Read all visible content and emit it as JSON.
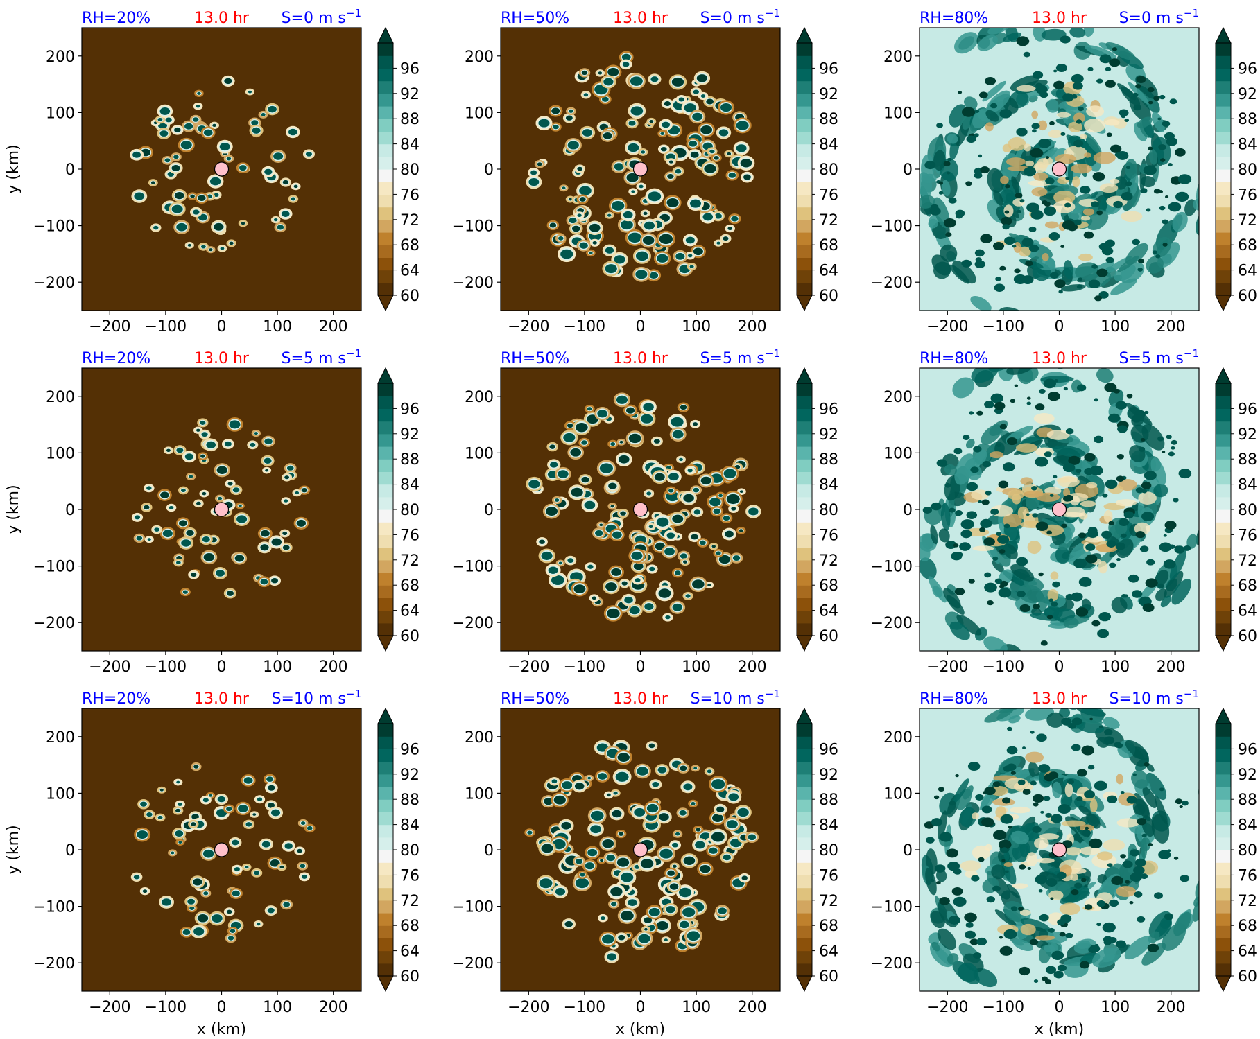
{
  "figure": {
    "time_label": "13.0 hr",
    "x_label": "x (km)",
    "y_label": "y (km)",
    "title_left_color": "#0000ff",
    "title_center_color": "#ff0000",
    "title_right_color": "#0000ff"
  },
  "colorbar": {
    "tick_labels": [
      "96",
      "92",
      "88",
      "84",
      "80",
      "76",
      "72",
      "68",
      "64",
      "60"
    ],
    "colors_low_to_high": [
      "#543005",
      "#6f4208",
      "#8c510a",
      "#a86b1f",
      "#bf812d",
      "#d2a660",
      "#dfc27d",
      "#efdeb0",
      "#f6e8c3",
      "#f5f5f5",
      "#d6efeb",
      "#c7eae5",
      "#9fdbd1",
      "#80cdc1",
      "#5ab4ac",
      "#35978f",
      "#1e7f76",
      "#01665e",
      "#00574e",
      "#003c30"
    ]
  },
  "chart_data": {
    "type": "heatmap",
    "variable_colorbar": {
      "min": 60,
      "max": 100,
      "step": 2,
      "ticks": [
        60,
        64,
        68,
        72,
        76,
        80,
        84,
        88,
        92,
        96
      ],
      "extend": "both"
    },
    "xlim": [
      -250,
      250
    ],
    "ylim": [
      -250,
      250
    ],
    "x_ticks": [
      "−200",
      "−100",
      "0",
      "100",
      "200"
    ],
    "y_ticks": [
      "200",
      "100",
      "0",
      "−100",
      "−200"
    ],
    "xlabel": "x (km)",
    "ylabel": "y (km)",
    "center_marker": {
      "x": 0,
      "y": 0,
      "color": "#ffc0cb"
    },
    "panels": [
      {
        "rh_label": "RH=20%",
        "shear_label": "S=0 m s",
        "shear_exp": "−1",
        "rh": 20,
        "shear": 0,
        "background_level": 60,
        "cells": 70,
        "cell_radius_km": 160,
        "seed": 11
      },
      {
        "rh_label": "RH=50%",
        "shear_label": "S=0 m s",
        "shear_exp": "−1",
        "rh": 50,
        "shear": 0,
        "background_level": 60,
        "cells": 150,
        "cell_radius_km": 200,
        "seed": 23
      },
      {
        "rh_label": "RH=80%",
        "shear_label": "S=0 m s",
        "shear_exp": "−1",
        "rh": 80,
        "shear": 0,
        "background_level": 83,
        "cells": 170,
        "cell_radius_km": 240,
        "seed": 37
      },
      {
        "rh_label": "RH=20%",
        "shear_label": "S=5 m s",
        "shear_exp": "−1",
        "rh": 20,
        "shear": 5,
        "background_level": 60,
        "cells": 70,
        "cell_radius_km": 160,
        "seed": 12
      },
      {
        "rh_label": "RH=50%",
        "shear_label": "S=5 m s",
        "shear_exp": "−1",
        "rh": 50,
        "shear": 5,
        "background_level": 60,
        "cells": 150,
        "cell_radius_km": 200,
        "seed": 24
      },
      {
        "rh_label": "RH=80%",
        "shear_label": "S=5 m s",
        "shear_exp": "−1",
        "rh": 80,
        "shear": 5,
        "background_level": 82,
        "cells": 170,
        "cell_radius_km": 240,
        "seed": 38
      },
      {
        "rh_label": "RH=20%",
        "shear_label": "S=10 m s",
        "shear_exp": "−1",
        "rh": 20,
        "shear": 10,
        "background_level": 60,
        "cells": 70,
        "cell_radius_km": 160,
        "seed": 13
      },
      {
        "rh_label": "RH=50%",
        "shear_label": "S=10 m s",
        "shear_exp": "−1",
        "rh": 50,
        "shear": 10,
        "background_level": 60,
        "cells": 150,
        "cell_radius_km": 200,
        "seed": 25
      },
      {
        "rh_label": "RH=80%",
        "shear_label": "S=10 m s",
        "shear_exp": "−1",
        "rh": 80,
        "shear": 10,
        "background_level": 82,
        "cells": 170,
        "cell_radius_km": 240,
        "seed": 39
      }
    ]
  }
}
